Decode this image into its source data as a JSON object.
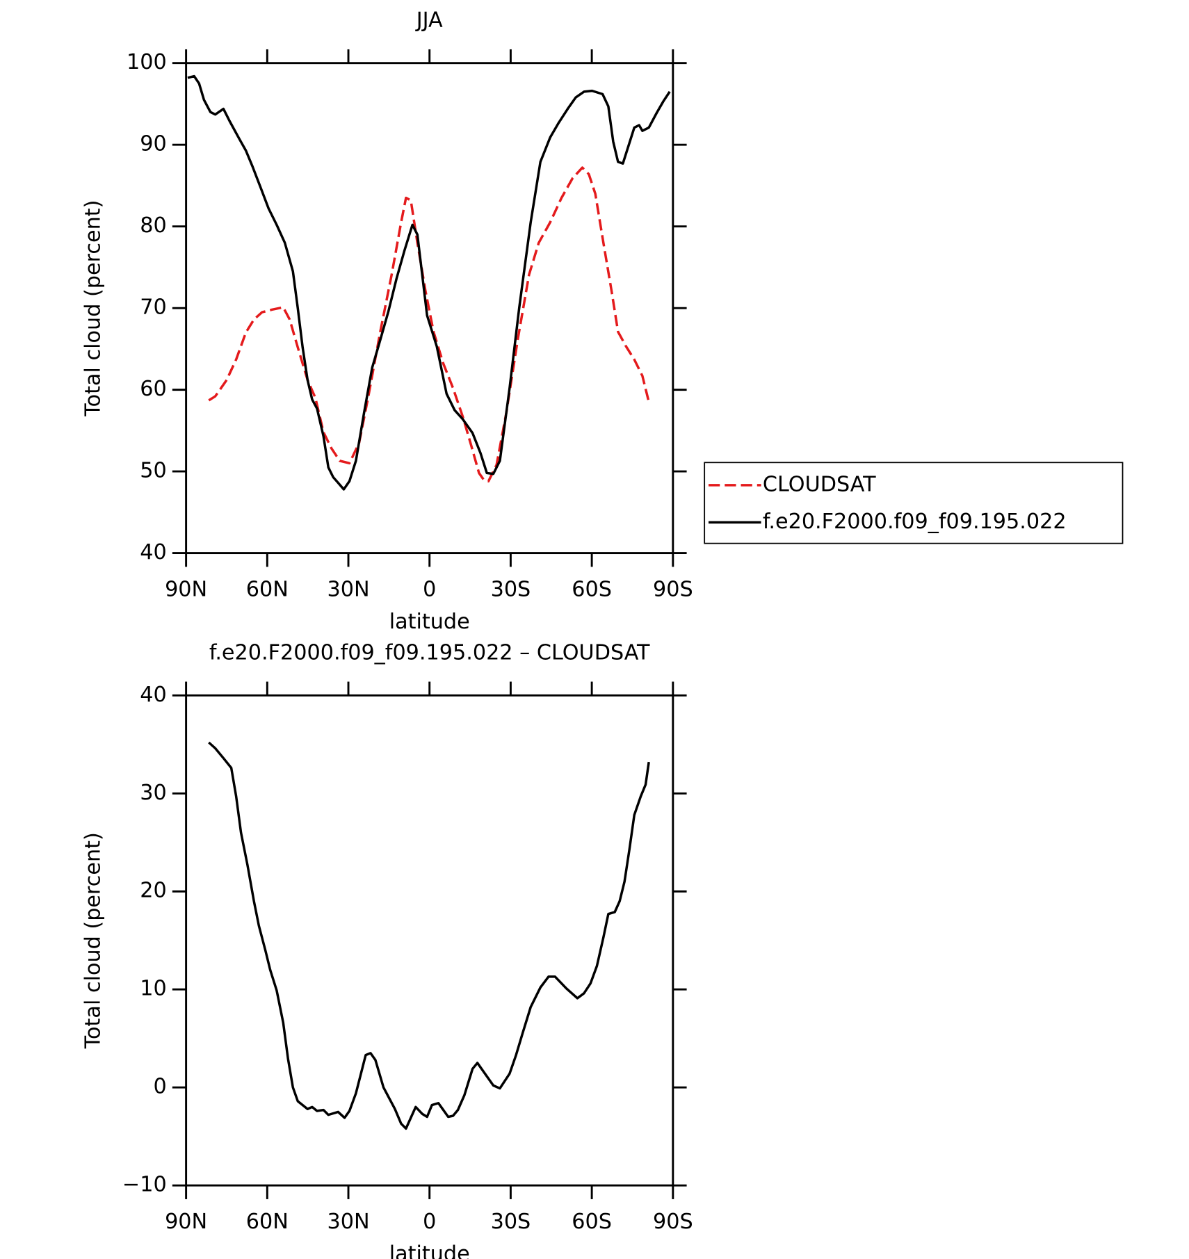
{
  "chart_data": [
    {
      "type": "line",
      "title": "JJA",
      "ylabel": "Total cloud (percent)",
      "xlabel": "latitude",
      "xlim": [
        90,
        -90
      ],
      "ylim": [
        40,
        100
      ],
      "xticks": [
        {
          "value": 90,
          "label": "90N"
        },
        {
          "value": 60,
          "label": "60N"
        },
        {
          "value": 30,
          "label": "30N"
        },
        0,
        {
          "value": -30,
          "label": "30S"
        },
        {
          "value": -60,
          "label": "60S"
        },
        {
          "value": -90,
          "label": "90S"
        }
      ],
      "yticks": [
        40,
        50,
        60,
        70,
        80,
        90,
        100
      ],
      "legend": "right",
      "series": [
        {
          "name": "CLOUDSAT",
          "color": "#e41a1c",
          "dash": true,
          "x": [
            81.6,
            79.2,
            75,
            71.5,
            67.9,
            64.9,
            61.9,
            58.3,
            54.1,
            51.7,
            48.7,
            45.1,
            42.2,
            39.2,
            36.2,
            33.2,
            29.6,
            26,
            22.6,
            18.2,
            14,
            10.5,
            8.7,
            6.9,
            4.5,
            1.5,
            -1.5,
            -5.1,
            -8.7,
            -12.3,
            -15.3,
            -18.3,
            -20,
            -21.8,
            -24.8,
            -28.4,
            -32.6,
            -36.8,
            -40.4,
            -44.6,
            -48.8,
            -52.9,
            -56.5,
            -58.9,
            -61.3,
            -64.3,
            -67.3,
            -69.7,
            -72.7,
            -75.7,
            -78.7,
            -81.1
          ],
          "values": [
            58.7,
            59.2,
            61.2,
            63.7,
            67,
            68.6,
            69.5,
            69.8,
            70.1,
            68.6,
            65.2,
            61.2,
            59,
            54.8,
            52.8,
            51.3,
            51,
            53.5,
            59.2,
            67.1,
            74.1,
            80.5,
            83.5,
            83.2,
            78,
            72.1,
            67.1,
            63.2,
            60.2,
            56.7,
            53.3,
            49.8,
            49,
            48.8,
            50.8,
            57.2,
            66.1,
            74.1,
            78,
            80.5,
            83.5,
            85.9,
            87.2,
            86.4,
            84,
            78,
            72.1,
            67.1,
            65.3,
            63.7,
            61.7,
            58.5
          ]
        },
        {
          "name": "f.e20.F2000.f09_f09.195.022",
          "color": "#000000",
          "dash": false,
          "x": [
            89.4,
            87,
            85.2,
            83.4,
            81,
            79.2,
            76.2,
            73.9,
            70.3,
            67.9,
            65.5,
            62.5,
            59.5,
            56.5,
            53.5,
            50.5,
            48.7,
            46.9,
            45.1,
            43.4,
            41.6,
            39.2,
            37.4,
            35.6,
            33.8,
            31.7,
            29.6,
            27.2,
            24.2,
            21.2,
            18.2,
            15.2,
            12.2,
            9.3,
            6.3,
            4.5,
            0.9,
            -2.7,
            -6.3,
            -9.3,
            -12.3,
            -15.9,
            -18.9,
            -21.2,
            -23.6,
            -26,
            -29.6,
            -33.2,
            -37.4,
            -41,
            -44.6,
            -47.6,
            -51.1,
            -54.1,
            -57.1,
            -60.1,
            -64,
            -66.1,
            -67.9,
            -69.7,
            -71.5,
            -75.7,
            -77.5,
            -78.7,
            -81.1,
            -84,
            -86.4,
            -88.8
          ],
          "values": [
            98.2,
            98.4,
            97.5,
            95.5,
            94,
            93.7,
            94.4,
            92.9,
            90.7,
            89.3,
            87.4,
            84.8,
            82.2,
            80.2,
            78,
            74.5,
            70,
            65.2,
            61.2,
            58.8,
            57.7,
            54.3,
            50.5,
            49.3,
            48.6,
            47.8,
            48.8,
            51.3,
            57.2,
            62.7,
            66.1,
            69.6,
            73.6,
            77,
            80.2,
            79,
            69.1,
            65.3,
            59.5,
            57.5,
            56.4,
            54.7,
            52.2,
            49.8,
            49.7,
            51.3,
            60.2,
            70.1,
            80.5,
            87.9,
            90.9,
            92.6,
            94.4,
            95.8,
            96.5,
            96.6,
            96.2,
            94.7,
            90.4,
            87.9,
            87.7,
            92.1,
            92.4,
            91.7,
            92.1,
            93.9,
            95.3,
            96.5
          ]
        }
      ]
    },
    {
      "type": "line",
      "title": "f.e20.F2000.f09_f09.195.022 – CLOUDSAT",
      "ylabel": "Total cloud (percent)",
      "xlabel": "latitude",
      "xlim": [
        90,
        -90
      ],
      "ylim": [
        -10,
        40
      ],
      "xticks": [
        {
          "value": 90,
          "label": "90N"
        },
        {
          "value": 60,
          "label": "60N"
        },
        {
          "value": 30,
          "label": "30N"
        },
        0,
        {
          "value": -30,
          "label": "30S"
        },
        {
          "value": -60,
          "label": "60S"
        },
        {
          "value": -90,
          "label": "90S"
        }
      ],
      "yticks": [
        {
          "value": -10,
          "label": "−10"
        },
        0,
        10,
        20,
        30,
        40
      ],
      "color": "#000000",
      "x": [
        81.6,
        79.2,
        76.2,
        73.3,
        71.5,
        69.7,
        67.3,
        64.9,
        63.1,
        60.7,
        58.9,
        56.5,
        54.1,
        52.3,
        50.5,
        48.7,
        45.1,
        43.4,
        41.6,
        39.2,
        37.4,
        33.8,
        31.4,
        29.6,
        27.2,
        23.6,
        21.8,
        20,
        17,
        12.8,
        10.5,
        8.7,
        5.1,
        2.7,
        0.9,
        -0.9,
        -3.3,
        -6.9,
        -8.7,
        -10.5,
        -12.9,
        -15.9,
        -17.7,
        -20,
        -23.6,
        -26,
        -29.6,
        -32,
        -34.4,
        -37.4,
        -41,
        -44,
        -46.4,
        -50.6,
        -54.7,
        -57.1,
        -59.5,
        -61.9,
        -64.3,
        -66.1,
        -68.5,
        -70.3,
        -72.1,
        -73.9,
        -75.7,
        -78.1,
        -79.9,
        -81.1
      ],
      "values": [
        35.2,
        34.6,
        33.6,
        32.6,
        29.7,
        26,
        22.7,
        19,
        16.5,
        14,
        12,
        9.9,
        6.6,
        2.9,
        0,
        -1.4,
        -2.2,
        -2,
        -2.4,
        -2.3,
        -2.8,
        -2.5,
        -3.1,
        -2.4,
        -0.6,
        3.3,
        3.5,
        2.8,
        0,
        -2.2,
        -3.7,
        -4.2,
        -2,
        -2.7,
        -3,
        -1.8,
        -1.6,
        -3,
        -2.9,
        -2.3,
        -0.8,
        1.9,
        2.5,
        1.6,
        0.2,
        -0.1,
        1.4,
        3.3,
        5.5,
        8.2,
        10.2,
        11.3,
        11.3,
        10.1,
        9.1,
        9.6,
        10.6,
        12.4,
        15.3,
        17.7,
        17.9,
        19,
        21,
        24.3,
        27.8,
        29.7,
        30.9,
        33.2
      ]
    }
  ]
}
